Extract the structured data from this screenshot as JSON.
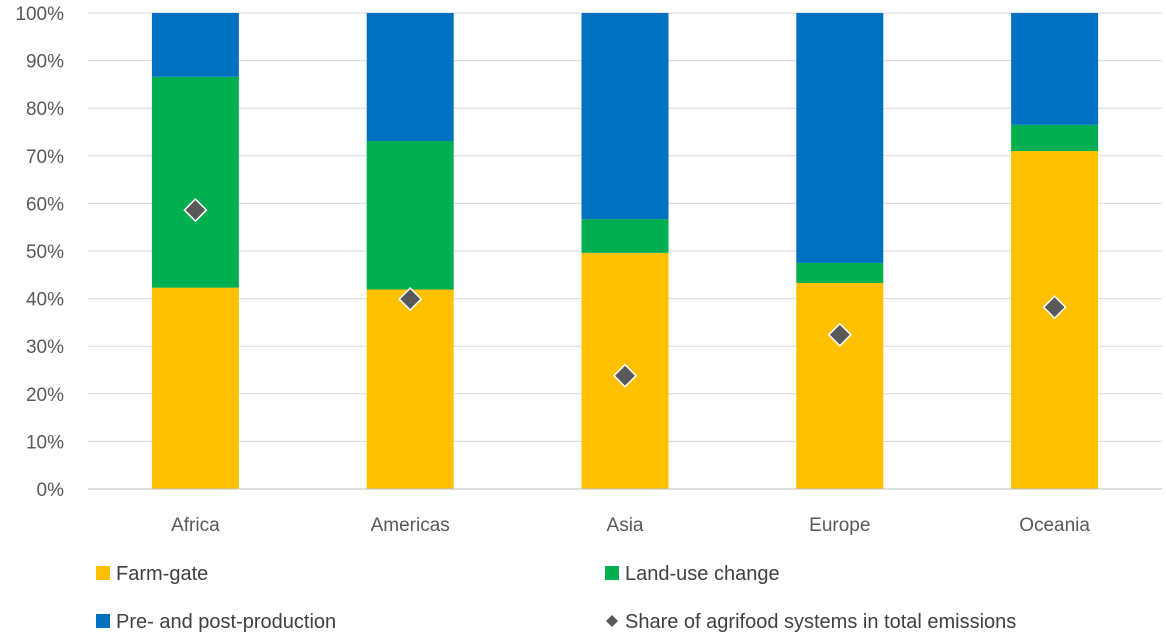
{
  "chart_data": {
    "type": "bar",
    "stacked": true,
    "percent_axis": true,
    "categories": [
      "Africa",
      "Americas",
      "Asia",
      "Europe",
      "Oceania"
    ],
    "series": [
      {
        "name": "Farm-gate",
        "color": "#FFC000",
        "values": [
          42.3,
          41.9,
          49.6,
          43.3,
          71.0
        ]
      },
      {
        "name": "Land-use change",
        "color": "#00B050",
        "values": [
          44.3,
          31.2,
          7.1,
          4.2,
          5.5
        ]
      },
      {
        "name": "Pre- and post-production",
        "color": "#0070C0",
        "values": [
          13.4,
          26.9,
          43.3,
          52.5,
          23.5
        ]
      }
    ],
    "markers": {
      "name": "Share of agrifood systems in total emissions",
      "color": "#595959",
      "shape": "diamond",
      "values": [
        58.6,
        39.9,
        23.8,
        32.4,
        38.2
      ]
    },
    "ylim": [
      0,
      100
    ],
    "yticks": [
      {
        "value": 0,
        "label": "0%"
      },
      {
        "value": 10,
        "label": "10%"
      },
      {
        "value": 20,
        "label": "20%"
      },
      {
        "value": 30,
        "label": "30%"
      },
      {
        "value": 40,
        "label": "40%"
      },
      {
        "value": 50,
        "label": "50%"
      },
      {
        "value": 60,
        "label": "60%"
      },
      {
        "value": 70,
        "label": "70%"
      },
      {
        "value": 80,
        "label": "80%"
      },
      {
        "value": 90,
        "label": "90%"
      },
      {
        "value": 100,
        "label": "100%"
      }
    ],
    "grid": true,
    "legend_position": "bottom",
    "title": "",
    "xlabel": "",
    "ylabel": ""
  }
}
